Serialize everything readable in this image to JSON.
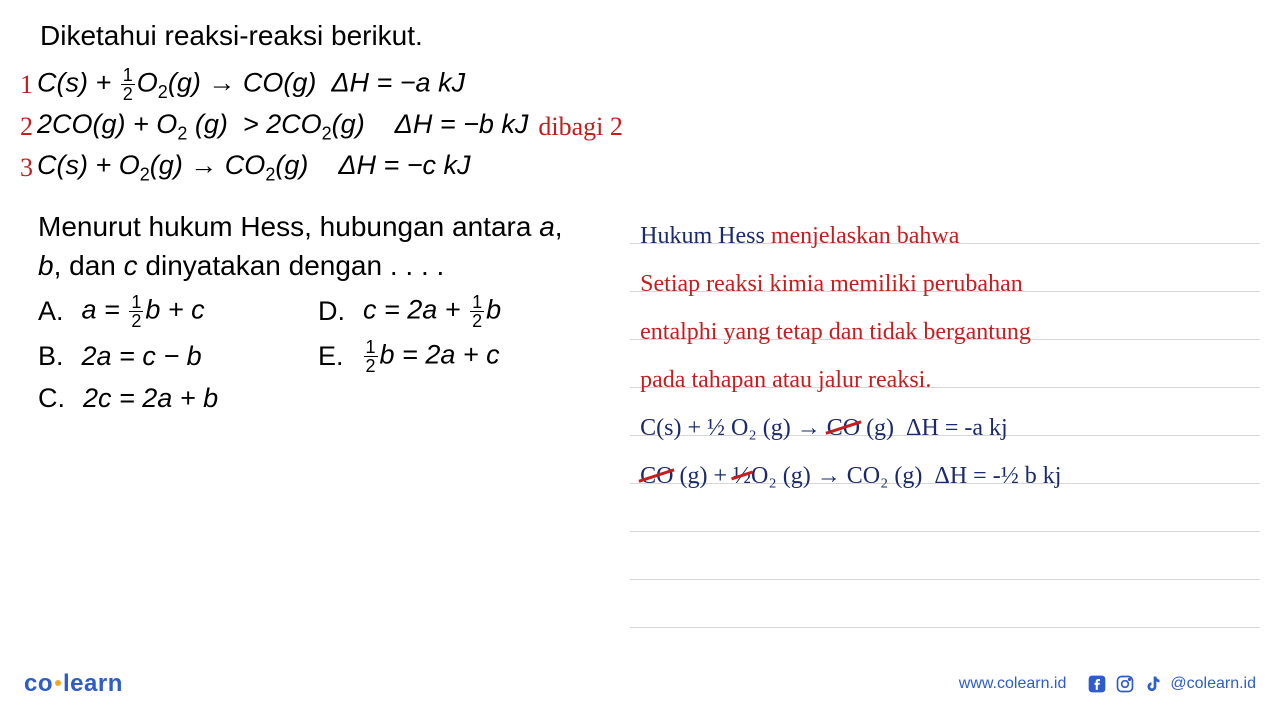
{
  "problem": {
    "title": "Diketahui reaksi-reaksi berikut.",
    "equations": [
      {
        "num": "1",
        "text_html": "C(<i>s</i>) + <span class='frac'><span class='num'>1</span><span>2</span></span>O<span class='sub'>2</span>(<i>g</i>) → CO(<i>g</i>)&nbsp;&nbsp;Δ<i>H</i> = −<i>a</i> kJ",
        "annotation": ""
      },
      {
        "num": "2",
        "text_html": "2CO(<i>g</i>) + O<span class='sub'>2</span> (<i>g</i>)&nbsp;&nbsp;&gt;&nbsp;2CO<span class='sub'>2</span>(<i>g</i>)&nbsp;&nbsp;&nbsp;&nbsp;Δ<i>H</i> = −<i>b</i> kJ",
        "annotation": "dibagi 2"
      },
      {
        "num": "3",
        "text_html": "C(<i>s</i>) + O<span class='sub'>2</span>(<i>g</i>) → CO<span class='sub'>2</span>(<i>g</i>)&nbsp;&nbsp;&nbsp;&nbsp;Δ<i>H</i> = −<i>c</i> kJ",
        "annotation": ""
      }
    ],
    "question_html": "Menurut hukum Hess, hubungan antara <span class='ital'>a</span>,<br><span class='ital'>b</span>, dan <span class='ital'>c</span> dinyatakan dengan . . . .",
    "options": {
      "A": "a = <span class='frac'><span class='num'>1</span><span>2</span></span>b + c",
      "B": "2a = c − b",
      "C": "2c = 2a + b",
      "D": "c = 2a + <span class='frac'><span class='num'>1</span><span>2</span></span>b",
      "E": "<span class='frac'><span class='num'>1</span><span>2</span></span>b = 2a + c"
    }
  },
  "handwritten": {
    "line1_blue": "Hukum Hess ",
    "line1_red": "menjelaskan bahwa",
    "line2": "Setiap reaksi kimia memiliki perubahan",
    "line3": "entalphi yang tetap dan tidak bergantung",
    "line4": "pada tahapan atau jalur reaksi.",
    "eq1": "C(s) + ½ O₂ (g) → <span class='strike'>CO</span> (g)&nbsp; ΔH = -a kj",
    "eq2": "<span class='strike'>CO</span> (g) + <span class='strike'>½</span>O₂ (g) → CO₂ (g)&nbsp; ΔH = -½ b kj"
  },
  "footer": {
    "logo_part1": "co",
    "logo_part2": "learn",
    "website": "www.colearn.id",
    "handle": "@colearn.id"
  },
  "colors": {
    "black": "#000000",
    "red": "#c41e1e",
    "blue_ink": "#1a2a6c",
    "brand_blue": "#2e5cc9",
    "rule": "#b0b0b0"
  }
}
